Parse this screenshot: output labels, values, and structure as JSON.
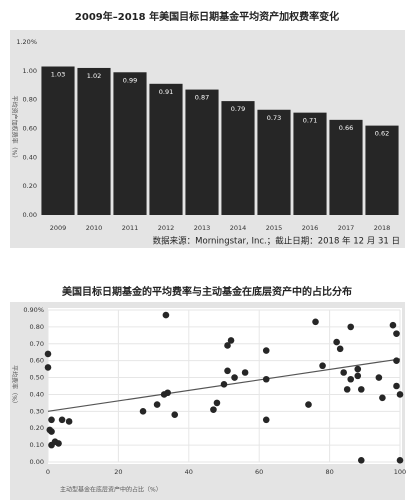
{
  "chart_data": [
    {
      "type": "bar",
      "title": "2009年–2018 年美国目标日期基金平均资产加权费率变化",
      "y_label": "平均资产加权费率（%）",
      "categories": [
        "2009",
        "2010",
        "2011",
        "2012",
        "2013",
        "2014",
        "2015",
        "2016",
        "2017",
        "2018"
      ],
      "values": [
        1.03,
        1.02,
        0.99,
        0.91,
        0.87,
        0.79,
        0.73,
        0.71,
        0.66,
        0.62
      ],
      "color": "#262626",
      "ylim": [
        0,
        1.2
      ],
      "yticks": [
        {
          "value": 1.2,
          "label": "1.20%"
        },
        {
          "value": 1,
          "label": "1.00"
        },
        {
          "value": 0.8,
          "label": "0.80"
        },
        {
          "value": 0.6,
          "label": "0.60"
        },
        {
          "value": 0.4,
          "label": "0.40"
        },
        {
          "value": 0.2,
          "label": "0.20"
        },
        {
          "value": 0,
          "label": "0.00"
        }
      ],
      "grid": false,
      "source": "数据来源：Morningstar, Inc.；截止日期：2018 年 12 月 31 日"
    },
    {
      "type": "scatter",
      "title": "美国目标日期基金的平均费率与主动基金在底层资产中的占比分布",
      "y_label": "平均费率（%）",
      "x_label": "主动型基金在底层资产中的占比（%）",
      "x": [
        0,
        0,
        1,
        0.5,
        1,
        2,
        3,
        1,
        4,
        6,
        33.5,
        27,
        31,
        33,
        34,
        36,
        47,
        48,
        50,
        51,
        52,
        51,
        53,
        56,
        62,
        62,
        62,
        74,
        76,
        78,
        82,
        83,
        86,
        84,
        85,
        86,
        88,
        89,
        88,
        89,
        94,
        95,
        98,
        99,
        99,
        99,
        100,
        100
      ],
      "values": [
        0.64,
        0.56,
        0.25,
        0.19,
        0.18,
        0.12,
        0.11,
        0.1,
        0.25,
        0.24,
        0.87,
        0.3,
        0.34,
        0.4,
        0.41,
        0.28,
        0.31,
        0.35,
        0.46,
        0.69,
        0.72,
        0.54,
        0.5,
        0.53,
        0.66,
        0.49,
        0.25,
        0.34,
        0.83,
        0.57,
        0.71,
        0.67,
        0.8,
        0.53,
        0.43,
        0.49,
        0.51,
        0.43,
        0.55,
        0.01,
        0.5,
        0.38,
        0.81,
        0.76,
        0.6,
        0.45,
        0.01,
        0.4
      ],
      "color": "#262626",
      "trend": {
        "x": [
          0,
          100
        ],
        "values": [
          0.3,
          0.61
        ],
        "color": "#555555"
      },
      "xlim": [
        0,
        100
      ],
      "xticks": [
        0,
        20,
        40,
        60,
        80,
        100
      ],
      "ylim": [
        0,
        0.9
      ],
      "yticks": [
        {
          "value": 0.9,
          "label": "0.90%"
        },
        {
          "value": 0.8,
          "label": "0.80"
        },
        {
          "value": 0.7,
          "label": "0.70"
        },
        {
          "value": 0.6,
          "label": "0.60"
        },
        {
          "value": 0.5,
          "label": "0.50"
        },
        {
          "value": 0.4,
          "label": "0.40"
        },
        {
          "value": 0.3,
          "label": "0.30"
        },
        {
          "value": 0.2,
          "label": "0.20"
        },
        {
          "value": 0.1,
          "label": "0.10"
        },
        {
          "value": 0,
          "label": "0.00"
        }
      ],
      "grid": true
    }
  ]
}
